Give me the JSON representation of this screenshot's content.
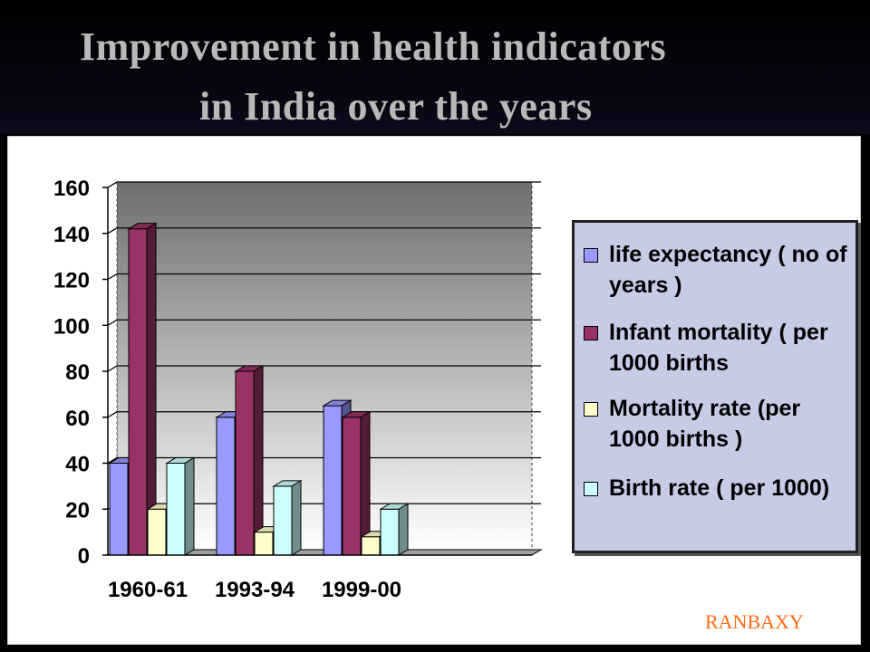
{
  "slide": {
    "title_line1": "Improvement in health indicators",
    "title_line2": "in India over the years",
    "logo_text": "RANBAXY"
  },
  "chart_data": {
    "type": "bar",
    "categories": [
      "1960-61",
      "1993-94",
      "1999-00"
    ],
    "series": [
      {
        "name": "life expectancy ( no of years )",
        "values": [
          40,
          60,
          65
        ],
        "color": "#9999ff"
      },
      {
        "name": "Infant mortality ( per 1000 births",
        "values": [
          142,
          80,
          60
        ],
        "color": "#993366"
      },
      {
        "name": "Mortality rate (per 1000 births )",
        "values": [
          20,
          10,
          8
        ],
        "color": "#ffffcc"
      },
      {
        "name": "Birth rate ( per 1000)",
        "values": [
          40,
          30,
          20
        ],
        "color": "#ccffff"
      }
    ],
    "ylim": [
      0,
      160
    ],
    "yticks": [
      "0",
      "20",
      "40",
      "60",
      "80",
      "100",
      "120",
      "140",
      "160"
    ],
    "grid": true,
    "legend": "right",
    "title": "",
    "xlabel": "",
    "ylabel": ""
  }
}
